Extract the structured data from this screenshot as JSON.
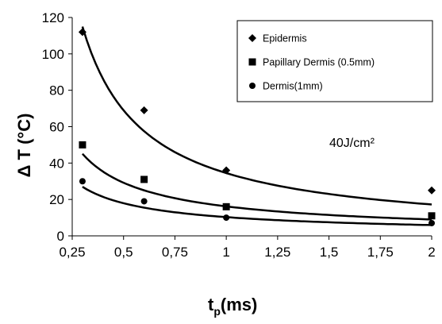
{
  "chart_data": {
    "type": "scatter",
    "xlabel": {
      "main": "t",
      "sub": "p",
      "rest": "(ms)"
    },
    "ylabel": "Δ T (°C)",
    "xlim": [
      0.25,
      2
    ],
    "ylim": [
      0,
      120
    ],
    "x_ticks": [
      0.25,
      0.5,
      0.75,
      1,
      1.25,
      1.5,
      1.75,
      2
    ],
    "x_tick_labels": [
      "0,25",
      "0,5",
      "0,75",
      "1",
      "1,25",
      "1,5",
      "1,75",
      "2"
    ],
    "y_ticks": [
      0,
      20,
      40,
      60,
      80,
      100,
      120
    ],
    "y_tick_labels": [
      "0",
      "20",
      "40",
      "60",
      "80",
      "100",
      "120"
    ],
    "grid": false,
    "legend_position": "top-right",
    "annotation": "40J/cm²",
    "series": [
      {
        "name": "Epidermis",
        "marker": "diamond",
        "x": [
          0.3,
          0.6,
          1,
          2
        ],
        "y": [
          112,
          69,
          36,
          25
        ],
        "fit": {
          "form": "power",
          "a": 34.5,
          "b": 1.0
        }
      },
      {
        "name": "Papillary Dermis (0.5mm)",
        "marker": "square",
        "x": [
          0.3,
          0.6,
          1,
          2
        ],
        "y": [
          50,
          31,
          16,
          11
        ],
        "fit": {
          "form": "power",
          "a": 16.2,
          "b": 0.85
        }
      },
      {
        "name": "Dermis(1mm)",
        "marker": "circle",
        "x": [
          0.3,
          0.6,
          1,
          2
        ],
        "y": [
          30,
          19,
          10,
          7
        ],
        "fit": {
          "form": "power",
          "a": 10.3,
          "b": 0.8
        }
      }
    ]
  }
}
